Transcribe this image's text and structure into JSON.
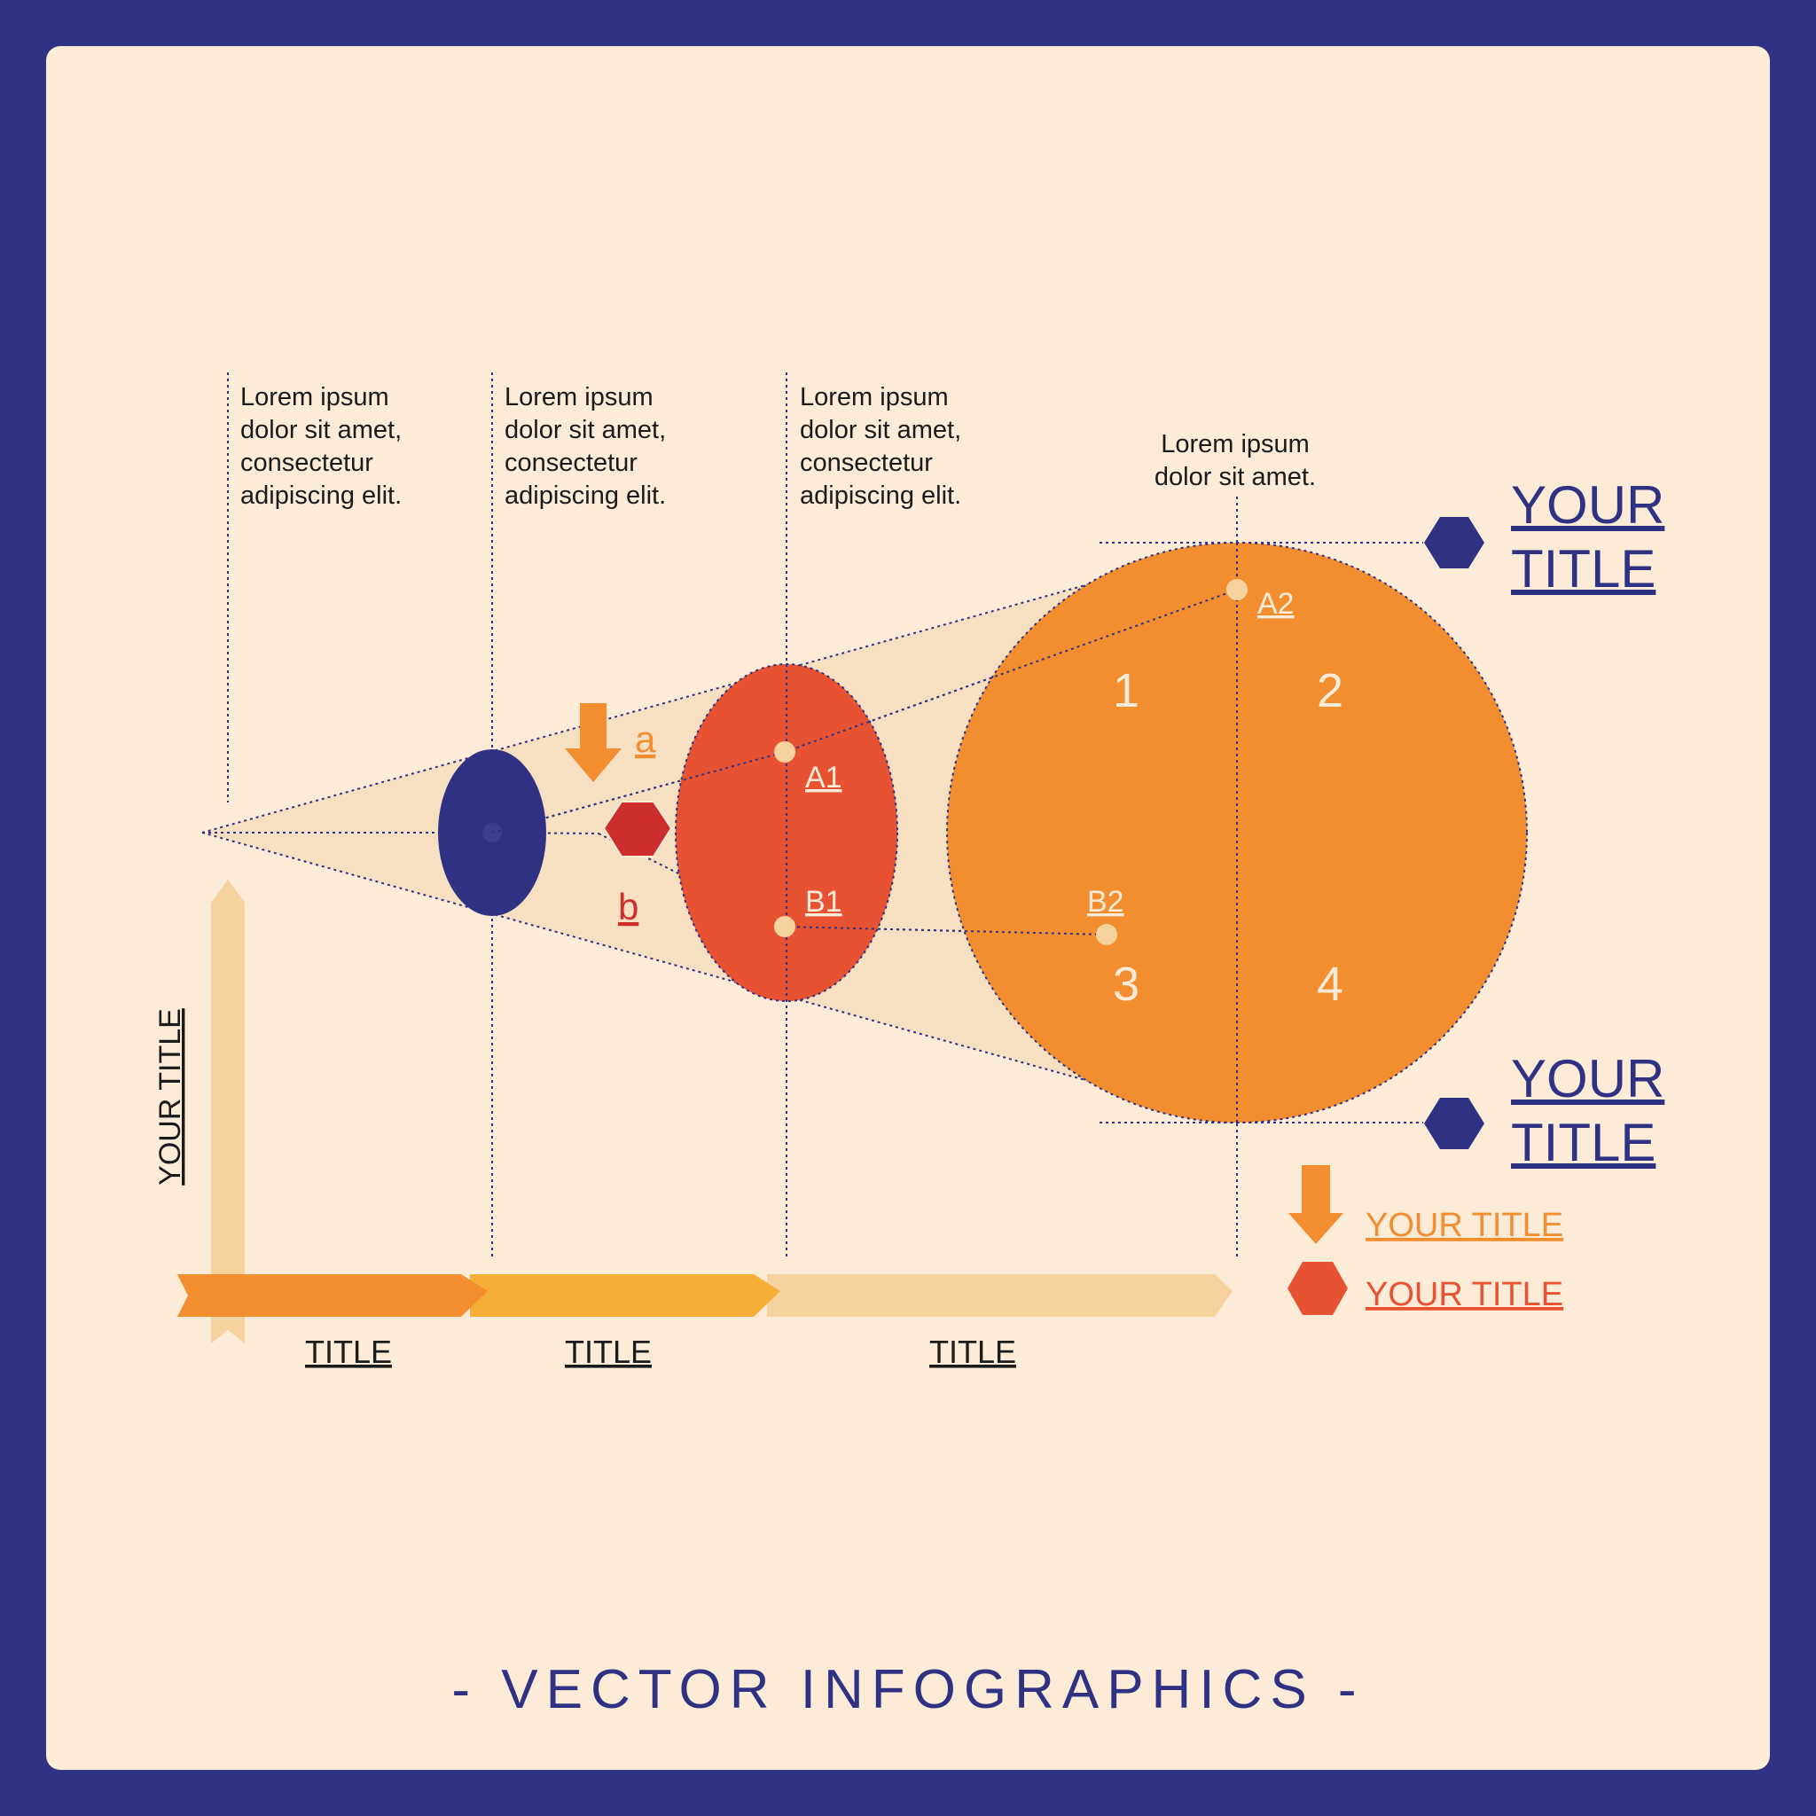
{
  "colors": {
    "frame": "#2f3282",
    "panel": "#fcebd7",
    "cone": "#f7dfc1",
    "navy": "#2f3282",
    "red_orange": "#e65232",
    "orange": "#f28e30",
    "yellow": "#f5ae36",
    "pale": "#f6d29f",
    "dark_red": "#cc2e2d",
    "point": "#f6d29f"
  },
  "descriptions": [
    {
      "lines": [
        "Lorem ipsum",
        "dolor sit amet,",
        "consectetur",
        "adipiscing elit."
      ]
    },
    {
      "lines": [
        "Lorem ipsum",
        "dolor sit amet,",
        "consectetur",
        "adipiscing elit."
      ]
    },
    {
      "lines": [
        "Lorem ipsum",
        "dolor sit amet,",
        "consectetur",
        "adipiscing elit."
      ]
    },
    {
      "lines": [
        "Lorem ipsum",
        "dolor sit amet."
      ]
    }
  ],
  "points": {
    "a1": "A1",
    "a2": "A2",
    "b1": "B1",
    "b2": "B2"
  },
  "markers": {
    "a": "a",
    "b": "b"
  },
  "quadrants": [
    "1",
    "2",
    "3",
    "4"
  ],
  "right_titles": [
    {
      "line1": "YOUR",
      "line2": "TITLE"
    },
    {
      "line1": "YOUR",
      "line2": "TITLE"
    }
  ],
  "legend": [
    {
      "label": "YOUR TITLE",
      "icon": "down-arrow-icon",
      "color": "#f28e30"
    },
    {
      "label": "YOUR TITLE",
      "icon": "hexagon-icon",
      "color": "#e65232"
    }
  ],
  "y_axis_title": "YOUR TITLE",
  "x_axis_titles": [
    "TITLE",
    "TITLE",
    "TITLE"
  ],
  "footer": "- VECTOR INFOGRAPHICS -"
}
